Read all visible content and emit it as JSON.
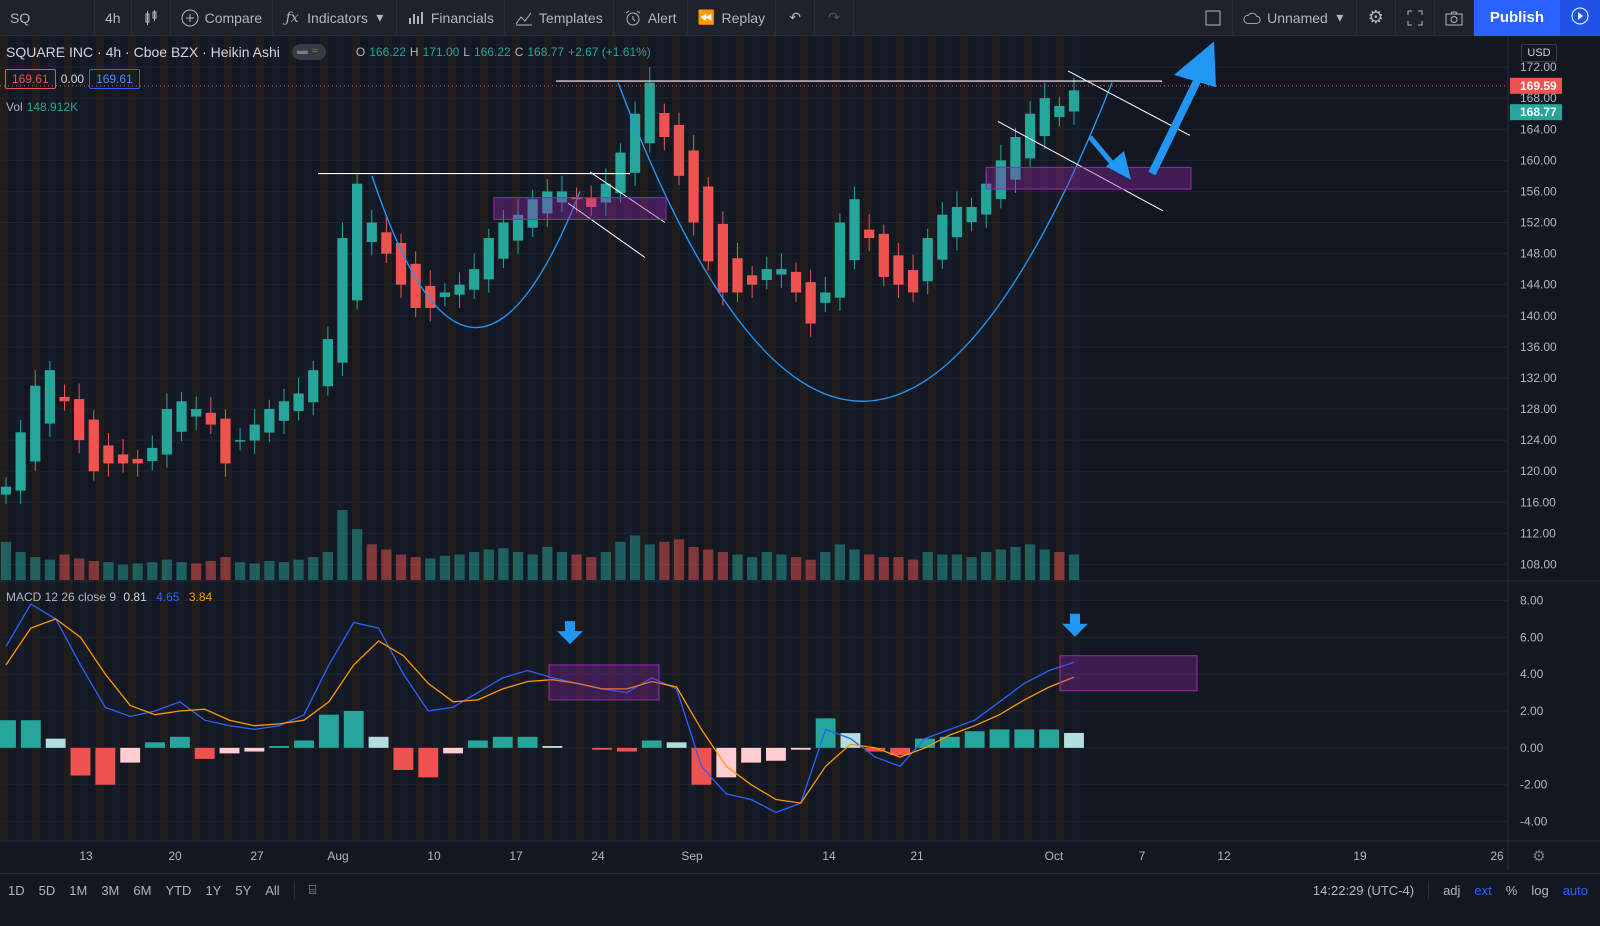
{
  "toolbar": {
    "symbol": "SQ",
    "interval": "4h",
    "compare": "Compare",
    "indicators": "Indicators",
    "financials": "Financials",
    "templates": "Templates",
    "alert": "Alert",
    "replay": "Replay",
    "layout_name": "Unnamed",
    "publish": "Publish"
  },
  "legend": {
    "title": "SQUARE INC · 4h · Cboe BZX · Heikin Ashi",
    "o_label": "O",
    "o": "166.22",
    "h_label": "H",
    "h": "171.00",
    "l_label": "L",
    "l": "166.22",
    "c_label": "C",
    "c": "168.77",
    "change": "+2.67 (+1.61%)",
    "bid": "169.61",
    "spread": "0.00",
    "ask": "169.61",
    "vol_label": "Vol",
    "vol_value": "148.912K"
  },
  "macd_legend": {
    "label": "MACD 12 26 close 9",
    "hist": "0.81",
    "macd": "4.65",
    "signal": "3.84"
  },
  "currency": "USD",
  "price_scale": {
    "ticks": [
      "172.00",
      "168.00",
      "164.00",
      "160.00",
      "156.00",
      "152.00",
      "148.00",
      "144.00",
      "140.00",
      "136.00",
      "132.00",
      "128.00",
      "124.00",
      "120.00",
      "116.00",
      "112.00",
      "108.00"
    ],
    "last_price_label": "169.59",
    "close_label": "168.77"
  },
  "macd_scale": {
    "ticks": [
      "8.00",
      "6.00",
      "4.00",
      "2.00",
      "0.00",
      "-2.00",
      "-4.00"
    ]
  },
  "time_axis": [
    "13",
    "20",
    "27",
    "Aug",
    "10",
    "17",
    "24",
    "Sep",
    "14",
    "21",
    "Oct",
    "7",
    "12",
    "19",
    "26"
  ],
  "bottom": {
    "ranges": [
      "1D",
      "5D",
      "1M",
      "3M",
      "6M",
      "YTD",
      "1Y",
      "5Y",
      "All"
    ],
    "clock": "14:22:29 (UTC-4)",
    "adj": "adj",
    "ext": "ext",
    "pct": "%",
    "log": "log",
    "auto": "auto"
  },
  "colors": {
    "up": "#26a69a",
    "down": "#ef5350",
    "macd": "#2962ff",
    "signal": "#ff9800",
    "annotation_box": "#9c27b0",
    "arrow": "#2196f3"
  },
  "chart_data": [
    {
      "type": "candlestick",
      "title": "SQUARE INC · 4h · Cboe BZX · Heikin Ashi",
      "ylim": [
        106,
        176
      ],
      "x_ticks": [
        "13",
        "20",
        "27",
        "Aug",
        "10",
        "17",
        "24",
        "Sep",
        "14",
        "21",
        "Oct",
        "7",
        "12",
        "19",
        "26"
      ],
      "ohlc_last": {
        "open": 166.22,
        "high": 171.0,
        "low": 166.22,
        "close": 168.77
      },
      "closes": [
        118,
        125,
        131,
        133,
        129,
        124,
        120,
        121,
        121,
        121,
        123,
        128,
        129,
        128,
        126,
        121,
        124,
        126,
        128,
        129,
        130,
        133,
        137,
        150,
        157,
        152,
        148,
        144,
        141,
        141,
        143,
        144,
        146,
        150,
        152,
        153,
        155,
        156,
        156,
        155,
        154,
        157,
        161,
        166,
        170,
        163,
        158,
        152,
        147,
        143,
        143,
        144,
        146,
        146,
        143,
        139,
        143,
        152,
        155,
        150,
        145,
        144,
        143,
        150,
        153,
        154,
        154,
        157,
        160,
        163,
        166,
        168,
        167,
        169
      ],
      "volume": [
        30,
        22,
        18,
        16,
        20,
        17,
        15,
        14,
        12,
        13,
        14,
        16,
        14,
        13,
        15,
        18,
        14,
        13,
        15,
        14,
        16,
        18,
        22,
        55,
        40,
        28,
        24,
        20,
        18,
        17,
        19,
        20,
        22,
        24,
        25,
        22,
        20,
        26,
        22,
        20,
        18,
        22,
        30,
        35,
        28,
        30,
        32,
        26,
        24,
        22,
        20,
        18,
        22,
        20,
        18,
        16,
        22,
        28,
        24,
        20,
        18,
        18,
        16,
        22,
        20,
        20,
        18,
        22,
        24,
        26,
        28,
        24,
        22,
        20
      ]
    },
    {
      "type": "line",
      "title": "MACD 12 26 close 9",
      "ylim": [
        -5,
        9
      ],
      "series": [
        {
          "name": "MACD",
          "values": [
            5.5,
            7.8,
            7.0,
            4.5,
            2.2,
            1.7,
            2.0,
            2.5,
            1.5,
            1.2,
            1.0,
            1.2,
            1.8,
            4.5,
            6.8,
            6.5,
            4.0,
            2.0,
            2.2,
            3.0,
            3.8,
            4.2,
            3.8,
            3.5,
            3.2,
            3.0,
            3.8,
            3.2,
            -1.0,
            -2.5,
            -2.8,
            -3.5,
            -3.0,
            1.0,
            0.5,
            -0.5,
            -1.0,
            0.5,
            1.0,
            1.5,
            2.5,
            3.5,
            4.2,
            4.65
          ]
        },
        {
          "name": "Signal",
          "values": [
            4.5,
            6.5,
            7.0,
            6.0,
            4.0,
            2.3,
            1.8,
            2.0,
            2.1,
            1.5,
            1.2,
            1.3,
            1.5,
            2.5,
            4.5,
            5.8,
            5.0,
            3.5,
            2.5,
            2.6,
            3.2,
            3.6,
            3.7,
            3.5,
            3.2,
            3.2,
            3.6,
            3.3,
            1.0,
            -1.0,
            -2.0,
            -2.8,
            -3.0,
            -1.0,
            0.2,
            0.0,
            -0.5,
            0.0,
            0.7,
            1.2,
            1.8,
            2.6,
            3.3,
            3.84
          ]
        },
        {
          "name": "Histogram",
          "values": [
            1.5,
            1.5,
            0.5,
            -1.5,
            -2.0,
            -0.8,
            0.3,
            0.6,
            -0.6,
            -0.3,
            -0.2,
            0.1,
            0.4,
            1.8,
            2.0,
            0.6,
            -1.2,
            -1.6,
            -0.3,
            0.4,
            0.6,
            0.6,
            0.1,
            0.0,
            -0.1,
            -0.2,
            0.4,
            0.3,
            -2.0,
            -1.6,
            -0.8,
            -0.7,
            -0.1,
            1.6,
            0.8,
            -0.2,
            -0.4,
            0.5,
            0.6,
            0.9,
            1.0,
            1.0,
            1.0,
            0.81
          ]
        }
      ]
    }
  ]
}
